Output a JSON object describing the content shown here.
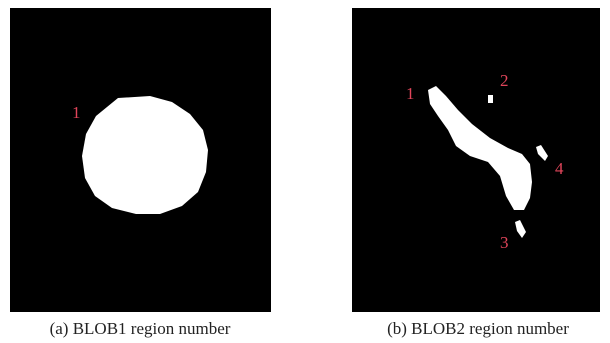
{
  "panels": [
    {
      "caption": "(a) BLOB1 region number",
      "labels": [
        "1"
      ]
    },
    {
      "caption": "(b) BLOB2 region number",
      "labels": [
        "1",
        "2",
        "4",
        "3"
      ]
    }
  ]
}
